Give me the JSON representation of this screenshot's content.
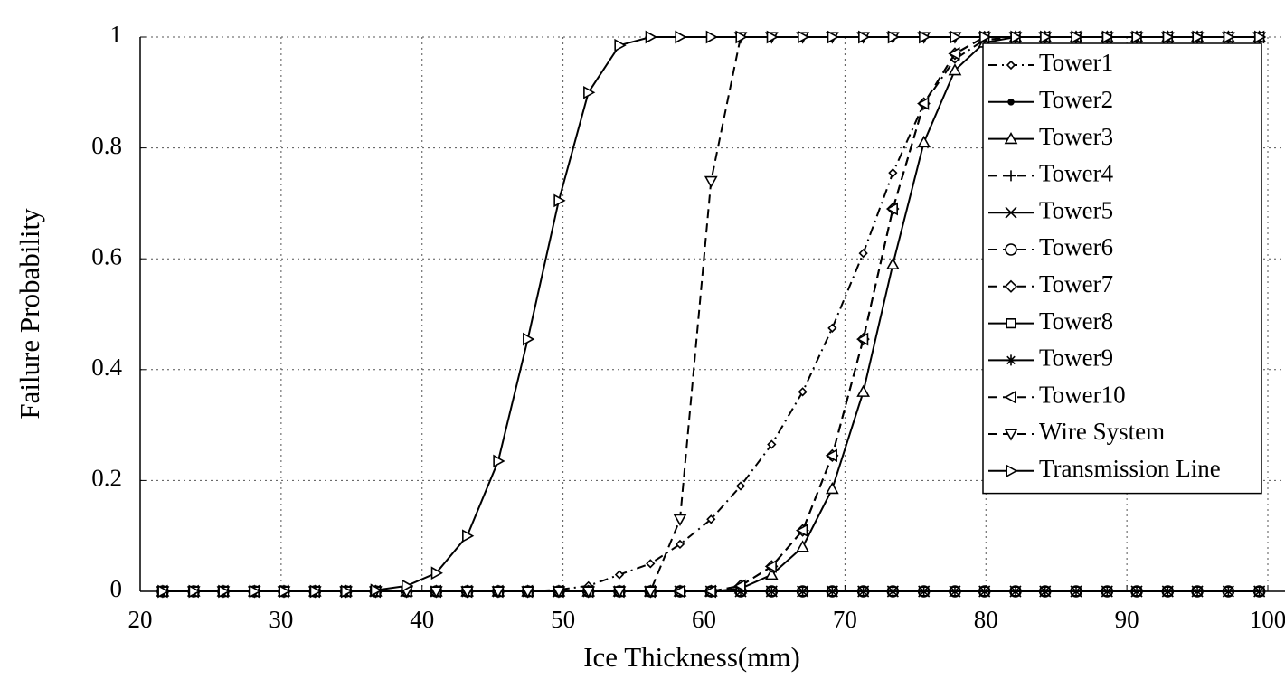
{
  "chart_data": {
    "type": "line",
    "x_label": "Ice Thickness(mm)",
    "y_label": "Failure Probability",
    "x": [
      21.6,
      23.8,
      25.9,
      28.1,
      30.2,
      32.4,
      34.6,
      36.7,
      38.9,
      41.0,
      43.2,
      45.4,
      47.5,
      49.7,
      51.8,
      54.0,
      56.2,
      58.3,
      60.5,
      62.6,
      64.8,
      67.0,
      69.1,
      71.3,
      73.4,
      75.6,
      77.8,
      79.9,
      82.1,
      84.2,
      86.4,
      88.6,
      90.7,
      92.9,
      95.0,
      97.2,
      99.4
    ],
    "xlim": [
      20,
      100
    ],
    "xticks": [
      20,
      30,
      40,
      50,
      60,
      70,
      80,
      90,
      100
    ],
    "ylim": [
      0,
      1
    ],
    "yticks": [
      0,
      0.2,
      0.4,
      0.6,
      0.8,
      1
    ],
    "grid": true,
    "legend": "upper right",
    "series": [
      {
        "name": "Tower1",
        "color": "#000000",
        "dash": "dashdot",
        "marker": "diamond-small",
        "values": [
          0,
          0,
          0,
          0,
          0,
          0,
          0,
          0,
          0,
          0,
          0,
          0,
          0,
          0.003,
          0.01,
          0.03,
          0.05,
          0.085,
          0.13,
          0.19,
          0.265,
          0.36,
          0.475,
          0.61,
          0.755,
          0.88,
          0.96,
          0.995,
          1,
          1,
          1,
          1,
          1,
          1,
          1,
          1,
          1
        ]
      },
      {
        "name": "Tower2",
        "color": "#000000",
        "dash": "solid",
        "marker": "dot",
        "values": [
          0,
          0,
          0,
          0,
          0,
          0,
          0,
          0,
          0,
          0,
          0,
          0,
          0,
          0,
          0,
          0,
          0,
          0,
          0,
          0,
          0,
          0,
          0,
          0,
          0,
          0,
          0,
          0,
          0,
          0,
          0,
          0,
          0,
          0,
          0,
          0,
          0
        ]
      },
      {
        "name": "Tower3",
        "color": "#000000",
        "dash": "solid",
        "marker": "triangle-up",
        "values": [
          0,
          0,
          0,
          0,
          0,
          0,
          0,
          0,
          0,
          0,
          0,
          0,
          0,
          0,
          0,
          0,
          0,
          0,
          0,
          0.005,
          0.03,
          0.08,
          0.185,
          0.36,
          0.59,
          0.81,
          0.94,
          0.99,
          1,
          1,
          1,
          1,
          1,
          1,
          1,
          1,
          1
        ]
      },
      {
        "name": "Tower4",
        "color": "#000000",
        "dash": "dash",
        "marker": "plus",
        "values": [
          0,
          0,
          0,
          0,
          0,
          0,
          0,
          0,
          0,
          0,
          0,
          0,
          0,
          0,
          0,
          0,
          0,
          0,
          0,
          0,
          0,
          0,
          0,
          0,
          0,
          0,
          0,
          0,
          0,
          0,
          0,
          0,
          0,
          0,
          0,
          0,
          0
        ]
      },
      {
        "name": "Tower5",
        "color": "#000000",
        "dash": "solid",
        "marker": "x",
        "values": [
          0,
          0,
          0,
          0,
          0,
          0,
          0,
          0,
          0,
          0,
          0,
          0,
          0,
          0,
          0,
          0,
          0,
          0,
          0,
          0,
          0,
          0,
          0,
          0,
          0,
          0,
          0,
          0,
          0,
          0,
          0,
          0,
          0,
          0,
          0,
          0,
          0
        ]
      },
      {
        "name": "Tower6",
        "color": "#000000",
        "dash": "dash",
        "marker": "circle",
        "values": [
          0,
          0,
          0,
          0,
          0,
          0,
          0,
          0,
          0,
          0,
          0,
          0,
          0,
          0,
          0,
          0,
          0,
          0,
          0,
          0,
          0,
          0,
          0,
          0,
          0,
          0,
          0,
          0,
          0,
          0,
          0,
          0,
          0,
          0,
          0,
          0,
          0
        ]
      },
      {
        "name": "Tower7",
        "color": "#000000",
        "dash": "dash",
        "marker": "diamond",
        "values": [
          0,
          0,
          0,
          0,
          0,
          0,
          0,
          0,
          0,
          0,
          0,
          0,
          0,
          0,
          0,
          0,
          0,
          0,
          0,
          0.01,
          0.045,
          0.11,
          0.245,
          0.455,
          0.69,
          0.88,
          0.97,
          1,
          1,
          1,
          1,
          1,
          1,
          1,
          1,
          1,
          1
        ]
      },
      {
        "name": "Tower8",
        "color": "#000000",
        "dash": "solid",
        "marker": "square",
        "values": [
          0,
          0,
          0,
          0,
          0,
          0,
          0,
          0,
          0,
          0,
          0,
          0,
          0,
          0,
          0,
          0,
          0,
          0,
          0,
          0,
          0,
          0,
          0,
          0,
          0,
          0,
          0,
          0,
          0,
          0,
          0,
          0,
          0,
          0,
          0,
          0,
          0
        ]
      },
      {
        "name": "Tower9",
        "color": "#000000",
        "dash": "solid",
        "marker": "asterisk",
        "values": [
          0,
          0,
          0,
          0,
          0,
          0,
          0,
          0,
          0,
          0,
          0,
          0,
          0,
          0,
          0,
          0,
          0,
          0,
          0,
          0,
          0,
          0,
          0,
          0,
          0,
          0,
          0,
          0,
          0,
          0,
          0,
          0,
          0,
          0,
          0,
          0,
          0
        ]
      },
      {
        "name": "Tower10",
        "color": "#000000",
        "dash": "dash",
        "marker": "triangle-left",
        "values": [
          0,
          0,
          0,
          0,
          0,
          0,
          0,
          0,
          0,
          0,
          0,
          0,
          0,
          0,
          0,
          0,
          0,
          0,
          0,
          0.01,
          0.045,
          0.11,
          0.245,
          0.455,
          0.69,
          0.88,
          0.97,
          1,
          1,
          1,
          1,
          1,
          1,
          1,
          1,
          1,
          1
        ]
      },
      {
        "name": "Wire System",
        "color": "#000000",
        "dash": "dash",
        "marker": "triangle-down",
        "values": [
          0,
          0,
          0,
          0,
          0,
          0,
          0,
          0,
          0,
          0,
          0,
          0,
          0,
          0,
          0,
          0,
          0,
          0.13,
          0.74,
          1,
          1,
          1,
          1,
          1,
          1,
          1,
          1,
          1,
          1,
          1,
          1,
          1,
          1,
          1,
          1,
          1,
          1
        ]
      },
      {
        "name": "Transmission Line",
        "color": "#000000",
        "dash": "solid",
        "marker": "triangle-right",
        "values": [
          0,
          0,
          0,
          0,
          0,
          0,
          0,
          0.002,
          0.01,
          0.033,
          0.1,
          0.235,
          0.455,
          0.705,
          0.9,
          0.985,
          1,
          1,
          1,
          1,
          1,
          1,
          1,
          1,
          1,
          1,
          1,
          1,
          1,
          1,
          1,
          1,
          1,
          1,
          1,
          1,
          1
        ]
      }
    ]
  }
}
